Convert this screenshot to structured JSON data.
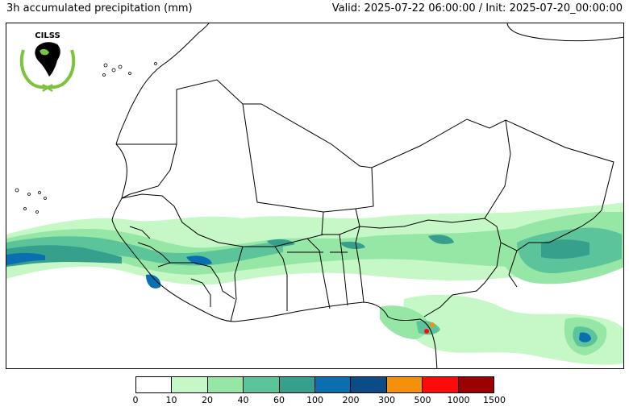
{
  "header": {
    "title": "3h accumulated precipitation (mm)",
    "valid": "Valid: 2025-07-22 06:00:00 / Init: 2025-07-20_00:00:00"
  },
  "logo": {
    "text": "CILSS"
  },
  "colorbar": {
    "colors": [
      "#ffffff",
      "#c6f7c6",
      "#96e6a6",
      "#5cc49a",
      "#36a08c",
      "#0a6fb0",
      "#0b4c86",
      "#f4900c",
      "#ff0a0a",
      "#9c0000"
    ],
    "labels": [
      "0",
      "10",
      "20",
      "40",
      "60",
      "100",
      "200",
      "300",
      "500",
      "1000",
      "1500"
    ]
  }
}
